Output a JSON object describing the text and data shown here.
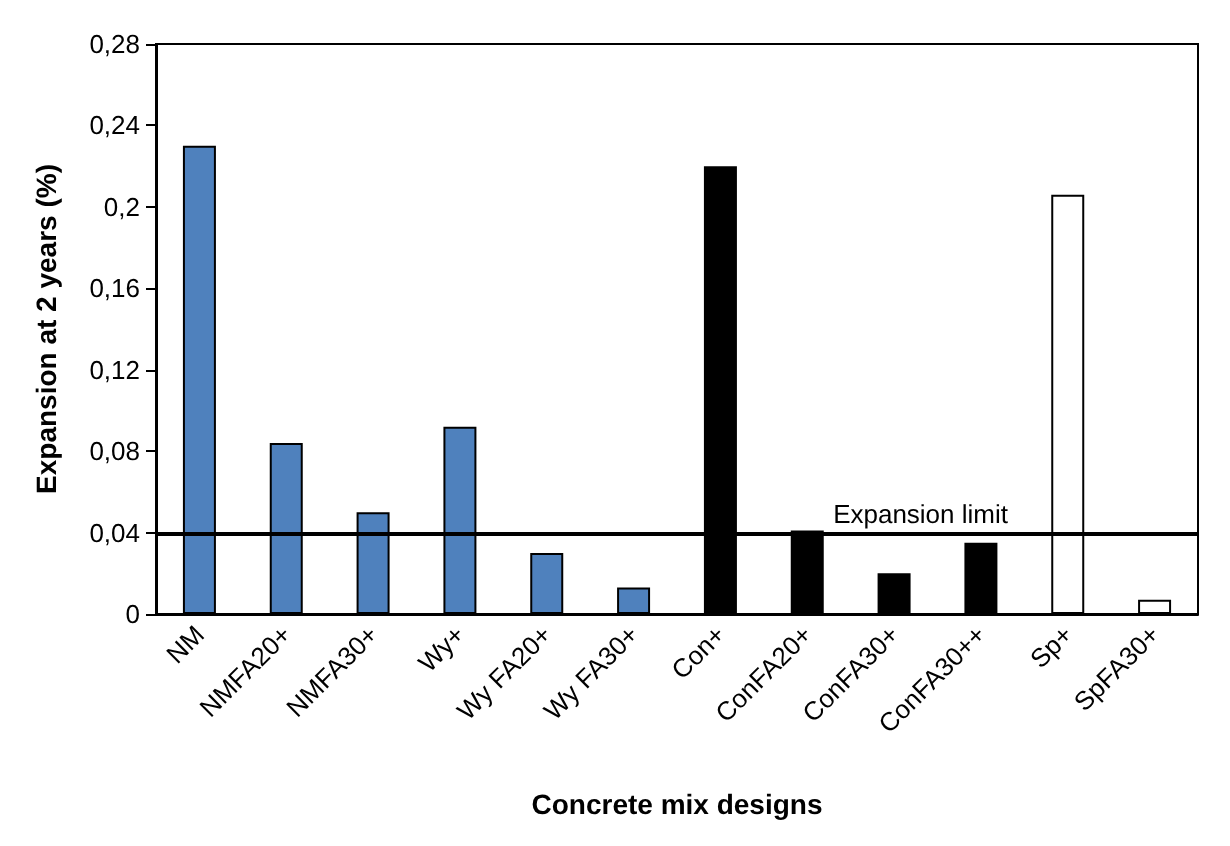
{
  "chart_data": {
    "type": "bar",
    "xlabel": "Concrete mix designs",
    "ylabel": "Expansion at 2 years (%)",
    "categories": [
      "NM",
      "NMFA20+",
      "NMFA30+",
      "Wy+",
      "Wy FA20+",
      "Wy FA30+",
      "Con+",
      "ConFA20+",
      "ConFA30+",
      "ConFA30++",
      "Sp+",
      "SpFA30+"
    ],
    "values": [
      0.23,
      0.084,
      0.05,
      0.092,
      0.03,
      0.013,
      0.22,
      0.041,
      0.02,
      0.035,
      0.206,
      0.007
    ],
    "colors": [
      "#4f81bd",
      "#4f81bd",
      "#4f81bd",
      "#4f81bd",
      "#4f81bd",
      "#4f81bd",
      "#000000",
      "#000000",
      "#000000",
      "#000000",
      "#ffffff",
      "#ffffff"
    ],
    "ylim": [
      0,
      0.28
    ],
    "yticks": [
      {
        "value": 0,
        "label": "0"
      },
      {
        "value": 0.04,
        "label": "0,04"
      },
      {
        "value": 0.08,
        "label": "0,08"
      },
      {
        "value": 0.12,
        "label": "0,12"
      },
      {
        "value": 0.16,
        "label": "0,16"
      },
      {
        "value": 0.2,
        "label": "0,2"
      },
      {
        "value": 0.24,
        "label": "0,24"
      },
      {
        "value": 0.28,
        "label": "0,28"
      }
    ],
    "ref_lines": [
      {
        "axis": "y",
        "value": 0.04,
        "label": "Expansion limit",
        "color": "#000000"
      }
    ],
    "grid": false
  }
}
